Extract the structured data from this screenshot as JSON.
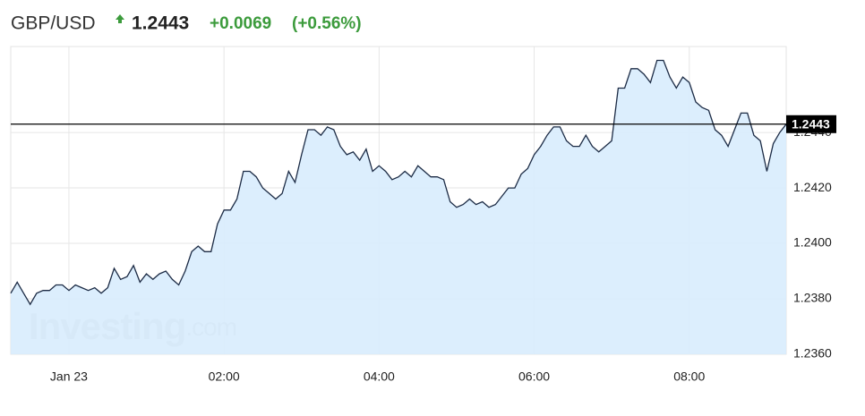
{
  "header": {
    "symbol": "GBP/USD",
    "price": "1.2443",
    "change": "+0.0069",
    "change_pct": "(+0.56%)"
  },
  "chart_data": {
    "type": "area",
    "watermark": {
      "brand": "Investing",
      "suffix": ".com"
    },
    "x": [
      -45,
      -40,
      -35,
      -30,
      -25,
      -20,
      -15,
      -10,
      -5,
      0,
      5,
      10,
      15,
      20,
      25,
      30,
      35,
      40,
      45,
      50,
      55,
      60,
      65,
      70,
      75,
      80,
      85,
      90,
      95,
      100,
      105,
      110,
      115,
      120,
      125,
      130,
      135,
      140,
      145,
      150,
      155,
      160,
      165,
      170,
      175,
      180,
      185,
      190,
      195,
      200,
      205,
      210,
      215,
      220,
      225,
      230,
      235,
      240,
      245,
      250,
      255,
      260,
      265,
      270,
      275,
      280,
      285,
      290,
      295,
      300,
      305,
      310,
      315,
      320,
      325,
      330,
      335,
      340,
      345,
      350,
      355,
      360,
      365,
      370,
      375,
      380,
      385,
      390,
      395,
      400,
      405,
      410,
      415,
      420,
      425,
      430,
      435,
      440,
      445,
      450,
      455,
      460,
      465,
      470,
      475,
      480,
      485,
      490,
      495,
      500,
      505,
      510,
      515,
      520,
      525,
      530,
      535,
      540,
      545,
      550,
      555
    ],
    "values": [
      1.2382,
      1.2386,
      1.2382,
      1.2378,
      1.2382,
      1.2383,
      1.2383,
      1.2385,
      1.2385,
      1.2383,
      1.2385,
      1.2384,
      1.2383,
      1.2384,
      1.2382,
      1.2384,
      1.2391,
      1.2387,
      1.2388,
      1.2392,
      1.2386,
      1.2389,
      1.2387,
      1.2389,
      1.239,
      1.2387,
      1.2385,
      1.239,
      1.2397,
      1.2399,
      1.2397,
      1.2397,
      1.2407,
      1.2412,
      1.2412,
      1.2416,
      1.2426,
      1.2426,
      1.2424,
      1.242,
      1.2418,
      1.2416,
      1.2418,
      1.2426,
      1.2422,
      1.2432,
      1.2441,
      1.2441,
      1.2439,
      1.2442,
      1.2441,
      1.2435,
      1.2432,
      1.2433,
      1.243,
      1.2434,
      1.2426,
      1.2428,
      1.2426,
      1.2423,
      1.2424,
      1.2426,
      1.2424,
      1.2428,
      1.2426,
      1.2424,
      1.2424,
      1.2423,
      1.2415,
      1.2413,
      1.2414,
      1.2416,
      1.2414,
      1.2415,
      1.2413,
      1.2414,
      1.2417,
      1.242,
      1.242,
      1.2425,
      1.2427,
      1.2432,
      1.2435,
      1.2439,
      1.2442,
      1.2442,
      1.2437,
      1.2435,
      1.2435,
      1.2439,
      1.2435,
      1.2433,
      1.2435,
      1.2437,
      1.2456,
      1.2456,
      1.2463,
      1.2463,
      1.2461,
      1.2458,
      1.2466,
      1.2466,
      1.246,
      1.2456,
      1.246,
      1.2458,
      1.2451,
      1.2449,
      1.2448,
      1.2441,
      1.2439,
      1.2435,
      1.2441,
      1.2447,
      1.2447,
      1.2439,
      1.2437,
      1.2426,
      1.2436,
      1.244,
      1.2443
    ],
    "line_color": "#1c2b45",
    "fill_color": "#d8ecfd",
    "xlim": [
      -45,
      555
    ],
    "xticks": [
      {
        "value": 0,
        "label": "Jan 23"
      },
      {
        "value": 120,
        "label": "02:00"
      },
      {
        "value": 240,
        "label": "04:00"
      },
      {
        "value": 360,
        "label": "06:00"
      },
      {
        "value": 480,
        "label": "08:00"
      }
    ],
    "ylim": [
      1.236,
      1.2471
    ],
    "yticks": [
      {
        "value": 1.236,
        "label": "1.2360"
      },
      {
        "value": 1.238,
        "label": "1.2380"
      },
      {
        "value": 1.24,
        "label": "1.2400"
      },
      {
        "value": 1.242,
        "label": "1.2420"
      },
      {
        "value": 1.244,
        "label": "1.2440"
      }
    ],
    "price_line": {
      "value": 1.2443,
      "label": "1.2443"
    },
    "grid": true
  }
}
